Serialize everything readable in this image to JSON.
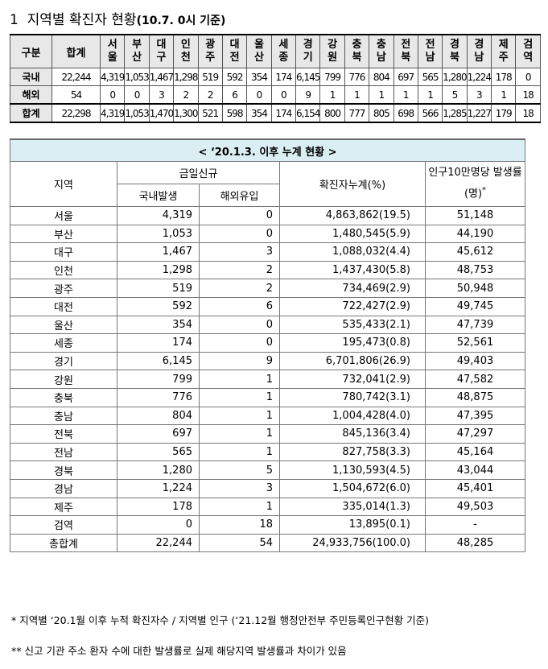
{
  "header": {
    "number": "1",
    "title": "지역별 확진자 현황",
    "note": "(10.7. 0시 기준)"
  },
  "summary_table": {
    "columns": [
      "구분",
      "합계",
      "서울",
      "부산",
      "대구",
      "인천",
      "광주",
      "대전",
      "울산",
      "세종",
      "경기",
      "강원",
      "충북",
      "충남",
      "전북",
      "전남",
      "경북",
      "경남",
      "제주",
      "검역"
    ],
    "rows": [
      [
        "국내",
        "22,244",
        "4,319",
        "1,053",
        "1,467",
        "1,298",
        "519",
        "592",
        "354",
        "174",
        "6,145",
        "799",
        "776",
        "804",
        "697",
        "565",
        "1,280",
        "1,224",
        "178",
        "0"
      ],
      [
        "해외",
        "54",
        "0",
        "0",
        "3",
        "2",
        "2",
        "6",
        "0",
        "0",
        "9",
        "1",
        "1",
        "1",
        "1",
        "1",
        "5",
        "3",
        "1",
        "18"
      ],
      [
        "합계",
        "22,298",
        "4,319",
        "1,053",
        "1,470",
        "1,300",
        "521",
        "598",
        "354",
        "174",
        "6,154",
        "800",
        "777",
        "805",
        "698",
        "566",
        "1,285",
        "1,227",
        "179",
        "18"
      ]
    ]
  },
  "cumulative_table": {
    "caption": "< ‘20.1.3. 이후 누계 현황 >",
    "headers": {
      "region": "지역",
      "today_new": "금일신규",
      "domestic": "국내발생",
      "overseas": "해외유입",
      "cumulative": "확진자누계(%)",
      "rate": "인구10만명당 발생률(명)",
      "rate_mark": "*"
    },
    "rows": [
      [
        "서울",
        "4,319",
        "0",
        "4,863,862(19.5)",
        "51,148"
      ],
      [
        "부산",
        "1,053",
        "0",
        "1,480,545(5.9)",
        "44,190"
      ],
      [
        "대구",
        "1,467",
        "3",
        "1,088,032(4.4)",
        "45,612"
      ],
      [
        "인천",
        "1,298",
        "2",
        "1,437,430(5.8)",
        "48,753"
      ],
      [
        "광주",
        "519",
        "2",
        "734,469(2.9)",
        "50,948"
      ],
      [
        "대전",
        "592",
        "6",
        "722,427(2.9)",
        "49,745"
      ],
      [
        "울산",
        "354",
        "0",
        "535,433(2.1)",
        "47,739"
      ],
      [
        "세종",
        "174",
        "0",
        "195,473(0.8)",
        "52,561"
      ],
      [
        "경기",
        "6,145",
        "9",
        "6,701,806(26.9)",
        "49,403"
      ],
      [
        "강원",
        "799",
        "1",
        "732,041(2.9)",
        "47,582"
      ],
      [
        "충북",
        "776",
        "1",
        "780,742(3.1)",
        "48,875"
      ],
      [
        "충남",
        "804",
        "1",
        "1,004,428(4.0)",
        "47,395"
      ],
      [
        "전북",
        "697",
        "1",
        "845,136(3.4)",
        "47,297"
      ],
      [
        "전남",
        "565",
        "1",
        "827,758(3.3)",
        "45,164"
      ],
      [
        "경북",
        "1,280",
        "5",
        "1,130,593(4.5)",
        "43,044"
      ],
      [
        "경남",
        "1,224",
        "3",
        "1,504,672(6.0)",
        "45,401"
      ],
      [
        "제주",
        "178",
        "1",
        "335,014(1.3)",
        "49,503"
      ],
      [
        "검역",
        "0",
        "18",
        "13,895(0.1)",
        "-"
      ],
      [
        "총합계",
        "22,244",
        "54",
        "24,933,756(100.0)",
        "48,285"
      ]
    ]
  },
  "footnotes": [
    "* 지역별 ‘20.1월 이후 누적 확진자수 / 지역별 인구 (‘21.12월 행정안전부 주민등록인구현황 기준)",
    "** 신고 기관 주소 환자 수에 대한 발생률로 실제 해당지역 발생률과 차이가 있음"
  ]
}
